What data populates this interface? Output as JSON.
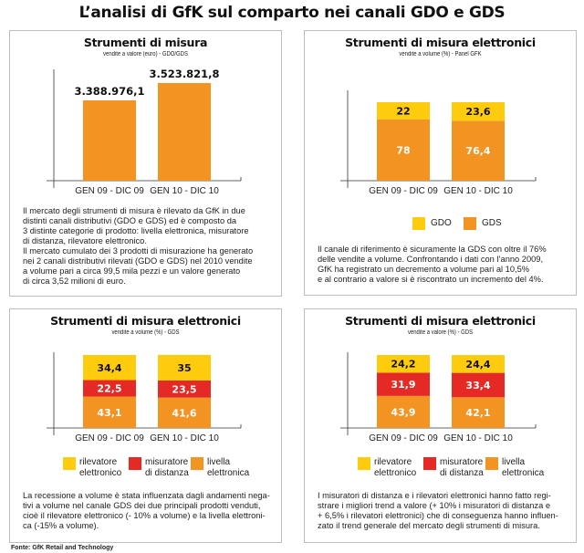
{
  "title": "L’analisi di GfK sul comparto nei canali GDO e GDS",
  "colors": {
    "orange": "#F39322",
    "yellow": "#FFCC0D",
    "red": "#E52A26"
  },
  "chart_data": [
    {
      "type": "bar",
      "title": "Strumenti di misura",
      "subtitle": "vendite a valore (euro) - GDO/GDS",
      "categories": [
        "GEN 09 - DIC 09",
        "GEN 10 - DIC 10"
      ],
      "values": [
        3388976.1,
        3523821.8
      ],
      "value_labels": [
        "3.388.976,1",
        "3.523.821,8"
      ],
      "color": "#F39322",
      "text": [
        "Il mercato degli strumenti di misura è rilevato da GfK in due",
        "distinti canali distributivi (GDO e GDS) ed è composto da",
        "3 distinte categorie di prodotto: livella elettronica, misuratore",
        "di distanza, rilevatore elettronico.",
        "Il mercato cumulato dei 3 prodotti di misurazione ha generato",
        "nei 2 canali distributivi rilevati (GDO e GDS) nel 2010 vendite",
        "a volume pari a circa 99,5 mila pezzi e un valore generato",
        "di circa 3,52 milioni di euro."
      ]
    },
    {
      "type": "bar",
      "stacked": true,
      "title": "Strumenti di misura elettronici",
      "subtitle": "vendite a volume (%) - Panel GFK",
      "categories": [
        "GEN 09 - DIC 09",
        "GEN 10 - DIC 10"
      ],
      "series": [
        {
          "name": "GDS",
          "values": [
            78,
            76.4
          ],
          "labels": [
            "78",
            "76,4"
          ],
          "color": "#F39322",
          "label_color": "#ffffff"
        },
        {
          "name": "GDO",
          "values": [
            22,
            23.6
          ],
          "labels": [
            "22",
            "23,6"
          ],
          "color": "#FFCC0D",
          "label_color": "#111111"
        }
      ],
      "legend": [
        "GDO",
        "GDS"
      ],
      "text": [
        "Il canale di riferimento è sicuramente la GDS con oltre il 76%",
        "delle vendite a volume. Confrontando i dati con l’anno 2009,",
        "GfK ha registrato un decremento a volume pari al 10,5%",
        "e al contrario a valore si è riscontrato un incremento del 4%."
      ]
    },
    {
      "type": "bar",
      "stacked": true,
      "title": "Strumenti di misura elettronici",
      "subtitle": "vendite a volume (%) - GDS",
      "categories": [
        "GEN 09 - DIC 09",
        "GEN 10 - DIC 10"
      ],
      "series": [
        {
          "name": "livella elettronica",
          "values": [
            43.1,
            41.6
          ],
          "labels": [
            "43,1",
            "41,6"
          ],
          "color": "#F39322",
          "label_color": "#ffffff"
        },
        {
          "name": "misuratore di distanza",
          "values": [
            22.5,
            23.5
          ],
          "labels": [
            "22,5",
            "23,5"
          ],
          "color": "#E52A26",
          "label_color": "#ffffff"
        },
        {
          "name": "rilevatore elettronico",
          "values": [
            34.4,
            35
          ],
          "labels": [
            "34,4",
            "35"
          ],
          "color": "#FFCC0D",
          "label_color": "#111111"
        }
      ],
      "legend": [
        [
          "rilevatore",
          "elettronico"
        ],
        [
          "misuratore",
          "di distanza"
        ],
        [
          "livella",
          "elettronica"
        ]
      ],
      "text": [
        "La recessione a volume è stata influenzata dagli andamenti nega-",
        "tivi a volume nel canale GDS dei due principali prodotti venduti,",
        "cioè il rilevatore elettronico (- 10% a volume) e la livella elettroni-",
        "ca (-15% a volume)."
      ]
    },
    {
      "type": "bar",
      "stacked": true,
      "title": "Strumenti di misura elettronici",
      "subtitle": "vendite a valore (%) - GDS",
      "categories": [
        "GEN 09 - DIC 09",
        "GEN 10 - DIC 10"
      ],
      "series": [
        {
          "name": "livella elettronica",
          "values": [
            43.9,
            42.1
          ],
          "labels": [
            "43,9",
            "42,1"
          ],
          "color": "#F39322",
          "label_color": "#ffffff"
        },
        {
          "name": "misuratore di distanza",
          "values": [
            31.9,
            33.4
          ],
          "labels": [
            "31,9",
            "33,4"
          ],
          "color": "#E52A26",
          "label_color": "#ffffff"
        },
        {
          "name": "rilevatore elettronico",
          "values": [
            24.2,
            24.4
          ],
          "labels": [
            "24,2",
            "24,4"
          ],
          "color": "#FFCC0D",
          "label_color": "#111111"
        }
      ],
      "legend": [
        [
          "rilevatore",
          "elettronico"
        ],
        [
          "misuratore",
          "di distanza"
        ],
        [
          "livella",
          "elettronica"
        ]
      ],
      "text": [
        "I misuratori di distanza e i rilevatori elettronici hanno fatto regi-",
        "strare i migliori trend a valore (+ 10% i misuratori di distanza e",
        "+ 6,5% i rilevatori elettronici) che di conseguenza hanno influen-",
        "zato il trend generale del mercato degli strumenti di misura."
      ]
    }
  ],
  "footer": "Fonte: GfK Retail and Technology"
}
